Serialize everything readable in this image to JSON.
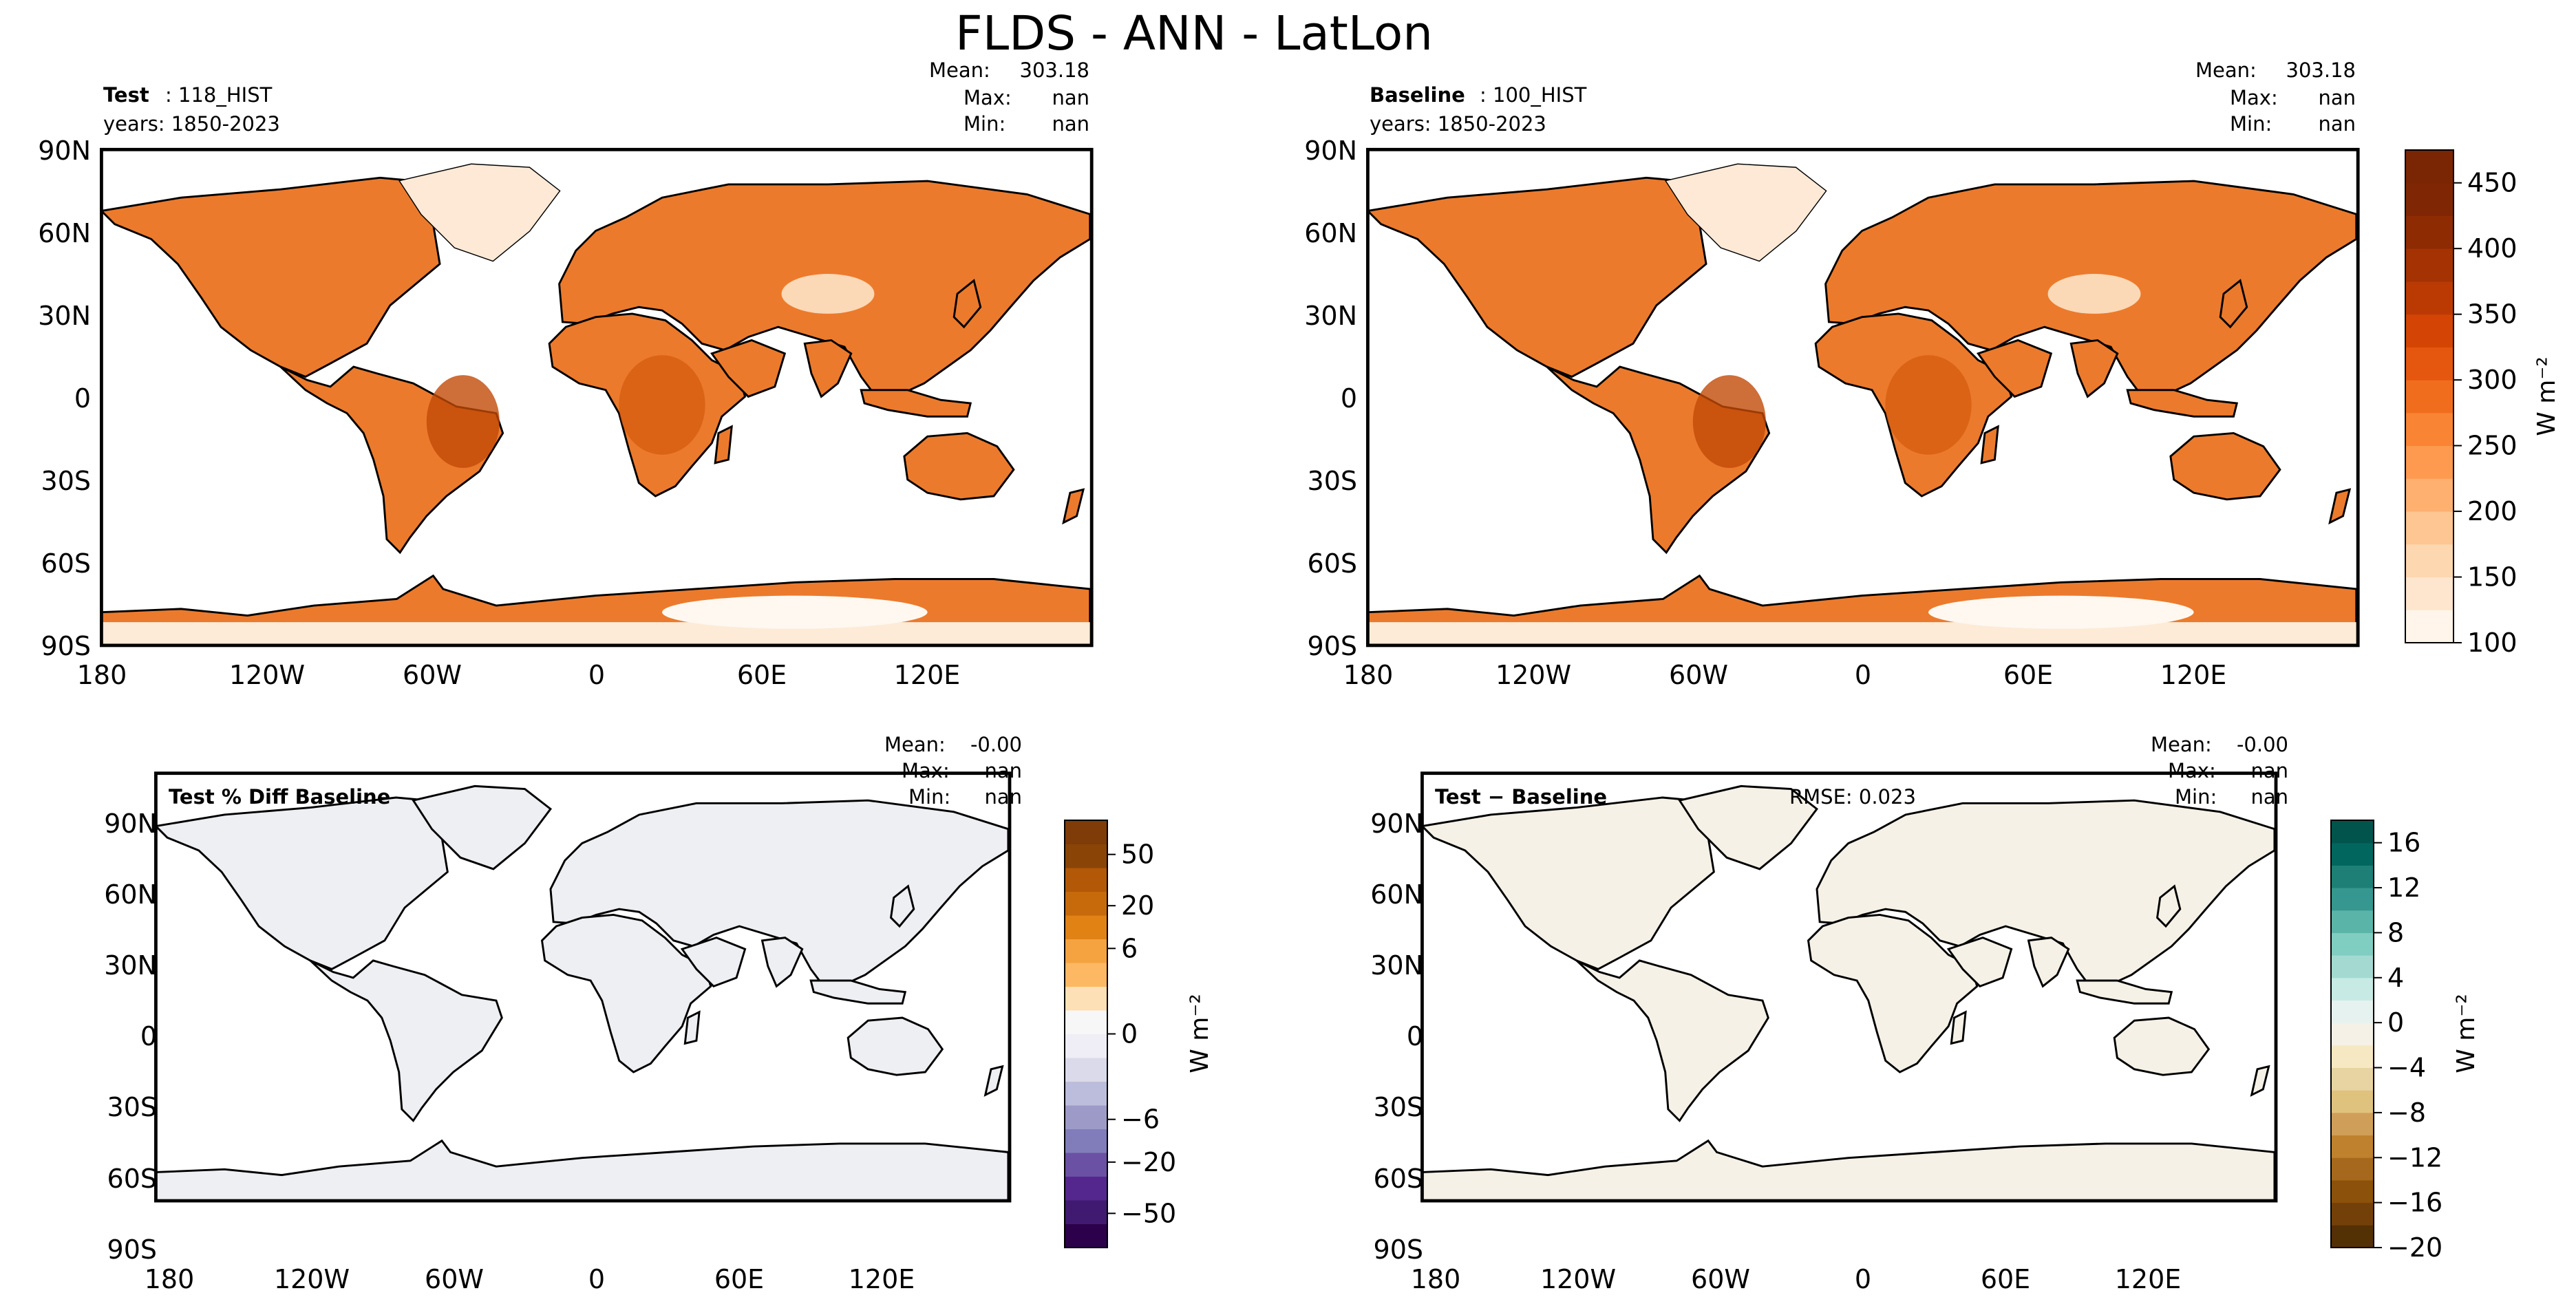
{
  "title": "FLDS - ANN - LatLon",
  "panels": [
    {
      "id": "test",
      "left_bold": "Test",
      "left_rest": ": 118_HIST",
      "years": "years: 1850-2023",
      "rmse": "",
      "stats": {
        "mean_label": "Mean:",
        "mean": "303.18",
        "max_label": "Max:",
        "max": "nan",
        "min_label": "Min:",
        "min": "nan"
      },
      "fill": "field",
      "lat_ticks": [
        "90N",
        "60N",
        "30N",
        "0",
        "30S",
        "60S",
        "90S"
      ],
      "lon_ticks": [
        "180",
        "120W",
        "60W",
        "0",
        "60E",
        "120E"
      ]
    },
    {
      "id": "baseline",
      "left_bold": "Baseline",
      "left_rest": ": 100_HIST",
      "years": "years: 1850-2023",
      "rmse": "",
      "stats": {
        "mean_label": "Mean:",
        "mean": "303.18",
        "max_label": "Max:",
        "max": "nan",
        "min_label": "Min:",
        "min": "nan"
      },
      "fill": "field",
      "lat_ticks": [
        "90N",
        "60N",
        "30N",
        "0",
        "30S",
        "60S",
        "90S"
      ],
      "lon_ticks": [
        "180",
        "120W",
        "60W",
        "0",
        "60E",
        "120E"
      ]
    },
    {
      "id": "pctdiff",
      "left_bold": "Test % Diff Baseline",
      "left_rest": "",
      "years": "",
      "rmse": "",
      "stats": {
        "mean_label": "Mean:",
        "mean": "-0.00",
        "max_label": "Max:",
        "max": "nan",
        "min_label": "Min:",
        "min": "nan"
      },
      "fill": "#eeeff3",
      "lat_ticks": [
        "90N",
        "60N",
        "30N",
        "0",
        "30S",
        "60S",
        "90S"
      ],
      "lon_ticks": [
        "180",
        "120W",
        "60W",
        "0",
        "60E",
        "120E"
      ]
    },
    {
      "id": "diff",
      "left_bold": "Test − Baseline",
      "left_rest": "",
      "years": "",
      "rmse": "RMSE: 0.023",
      "stats": {
        "mean_label": "Mean:",
        "mean": "-0.00",
        "max_label": "Max:",
        "max": "nan",
        "min_label": "Min:",
        "min": "nan"
      },
      "fill": "#f5f1e6",
      "lat_ticks": [
        "90N",
        "60N",
        "30N",
        "0",
        "30S",
        "60S",
        "90S"
      ],
      "lon_ticks": [
        "180",
        "120W",
        "60W",
        "0",
        "60E",
        "120E"
      ]
    }
  ],
  "colorbars": [
    {
      "id": "cbar-field",
      "unit": "W m⁻²",
      "ticks": [
        "100",
        "150",
        "200",
        "250",
        "300",
        "350",
        "400",
        "450"
      ],
      "tick_values": [
        100,
        150,
        200,
        250,
        300,
        350,
        400,
        450
      ],
      "range": [
        100,
        475
      ],
      "colors": [
        "#fff5eb",
        "#fee6ce",
        "#fdd7b0",
        "#fdc692",
        "#fdb070",
        "#fd9a50",
        "#f98434",
        "#f06d1d",
        "#e5560e",
        "#d44404",
        "#bb3a03",
        "#a53203",
        "#8e2b03",
        "#7f2704",
        "#7a2503"
      ]
    },
    {
      "id": "cbar-pct",
      "unit": "W m⁻²",
      "ticks": [
        "50",
        "20",
        "6",
        "0",
        "−6",
        "−20",
        "−50"
      ],
      "tick_positions": [
        0.92,
        0.8,
        0.7,
        0.5,
        0.3,
        0.2,
        0.08
      ],
      "colors": [
        "#2d004b",
        "#3f1a70",
        "#54278f",
        "#6a51a3",
        "#807dba",
        "#9e9ac8",
        "#bcbddc",
        "#dadaeb",
        "#efedf5",
        "#f7f7f7",
        "#fee0b6",
        "#fdb863",
        "#f5a340",
        "#e08214",
        "#c76a0b",
        "#b35806",
        "#8a4506",
        "#7f3b08"
      ]
    },
    {
      "id": "cbar-diff",
      "unit": "W m⁻²",
      "ticks": [
        "16",
        "12",
        "8",
        "4",
        "0",
        "−4",
        "−8",
        "−12",
        "−16",
        "−20"
      ],
      "tick_values": [
        16,
        12,
        8,
        4,
        0,
        -4,
        -8,
        -12,
        -16,
        -20
      ],
      "range": [
        -20,
        18
      ],
      "colors": [
        "#543005",
        "#744009",
        "#8c510a",
        "#a6681c",
        "#bf812d",
        "#cf9f59",
        "#dfc27d",
        "#e8d4a2",
        "#f6e8c3",
        "#f5f1e6",
        "#e6f2ef",
        "#c7eae5",
        "#a4d9d1",
        "#80cdc1",
        "#5ab4a8",
        "#35978f",
        "#1d7f76",
        "#01665e",
        "#00544c"
      ]
    }
  ]
}
